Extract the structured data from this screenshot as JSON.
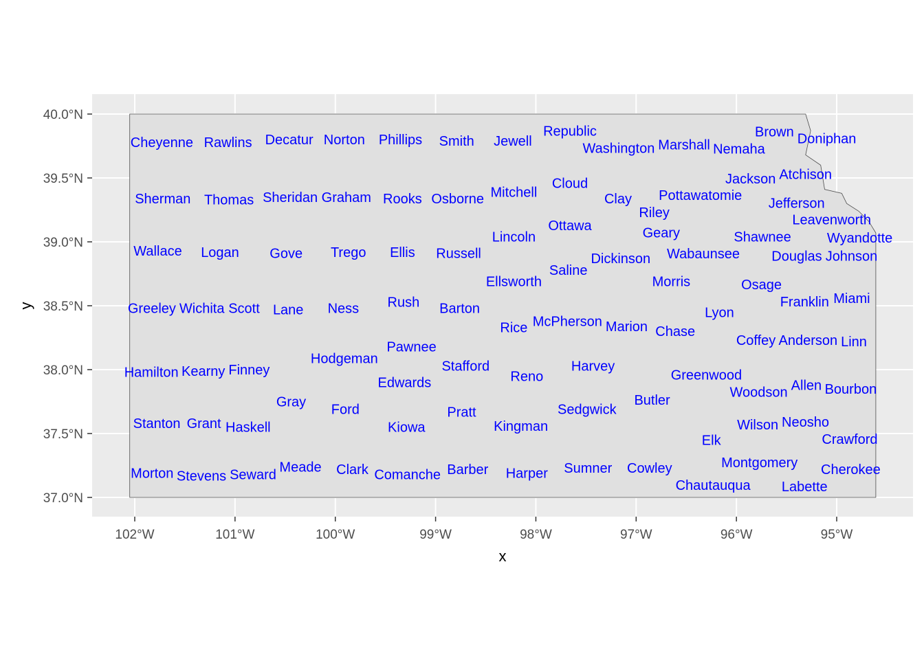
{
  "map": {
    "xlabel": "x",
    "ylabel": "y",
    "x_ticks": [
      {
        "lon": -102,
        "label": "102°W"
      },
      {
        "lon": -101,
        "label": "101°W"
      },
      {
        "lon": -100,
        "label": "100°W"
      },
      {
        "lon": -99,
        "label": "99°W"
      },
      {
        "lon": -98,
        "label": "98°W"
      },
      {
        "lon": -97,
        "label": "97°W"
      },
      {
        "lon": -96,
        "label": "96°W"
      },
      {
        "lon": -95,
        "label": "95°W"
      }
    ],
    "y_ticks": [
      {
        "lat": 40.0,
        "label": "40.0°N"
      },
      {
        "lat": 39.5,
        "label": "39.5°N"
      },
      {
        "lat": 39.0,
        "label": "39.0°N"
      },
      {
        "lat": 38.5,
        "label": "38.5°N"
      },
      {
        "lat": 38.0,
        "label": "38.0°N"
      },
      {
        "lat": 37.5,
        "label": "37.5°N"
      },
      {
        "lat": 37.0,
        "label": "37.0°N"
      }
    ],
    "xlim": [
      -102.42,
      -94.24
    ],
    "ylim": [
      36.85,
      40.15
    ],
    "colors": {
      "panel": "#ebebeb",
      "grid": "#ffffff",
      "county_fill": "#e0e0e0",
      "border": "#4d4d4d",
      "label": "#0000ff",
      "axis_text": "#4d4d4d"
    },
    "state_outline": [
      [
        -102.05,
        40.0
      ],
      [
        -95.31,
        40.0
      ],
      [
        -95.26,
        39.87
      ],
      [
        -95.31,
        39.68
      ],
      [
        -95.16,
        39.6
      ],
      [
        -95.12,
        39.41
      ],
      [
        -94.95,
        39.38
      ],
      [
        -94.9,
        39.3
      ],
      [
        -94.78,
        39.24
      ],
      [
        -94.68,
        39.16
      ],
      [
        -94.61,
        39.07
      ],
      [
        -94.61,
        37.0
      ],
      [
        -102.05,
        37.0
      ]
    ],
    "counties": [
      {
        "name": "Cheyenne",
        "lon": -101.73,
        "lat": 39.78
      },
      {
        "name": "Rawlins",
        "lon": -101.07,
        "lat": 39.78
      },
      {
        "name": "Decatur",
        "lon": -100.46,
        "lat": 39.8
      },
      {
        "name": "Norton",
        "lon": -99.91,
        "lat": 39.8
      },
      {
        "name": "Phillips",
        "lon": -99.35,
        "lat": 39.8
      },
      {
        "name": "Smith",
        "lon": -98.79,
        "lat": 39.79
      },
      {
        "name": "Jewell",
        "lon": -98.23,
        "lat": 39.79
      },
      {
        "name": "Republic",
        "lon": -97.66,
        "lat": 39.82
      },
      {
        "name": "Washington",
        "lon": -97.1,
        "lat": 39.78
      },
      {
        "name": "Marshall",
        "lon": -96.54,
        "lat": 39.76
      },
      {
        "name": "Nemaha",
        "lon": -96.03,
        "lat": 39.78
      },
      {
        "name": "Brown",
        "lon": -95.6,
        "lat": 39.81
      },
      {
        "name": "Doniphan",
        "lon": -95.12,
        "lat": 39.81
      },
      {
        "name": "Sherman",
        "lon": -101.72,
        "lat": 39.34
      },
      {
        "name": "Thomas",
        "lon": -101.06,
        "lat": 39.33
      },
      {
        "name": "Sheridan",
        "lon": -100.45,
        "lat": 39.35
      },
      {
        "name": "Graham",
        "lon": -99.89,
        "lat": 39.35
      },
      {
        "name": "Rooks",
        "lon": -99.33,
        "lat": 39.34
      },
      {
        "name": "Osborne",
        "lon": -98.78,
        "lat": 39.34
      },
      {
        "name": "Mitchell",
        "lon": -98.22,
        "lat": 39.39
      },
      {
        "name": "Cloud",
        "lon": -97.66,
        "lat": 39.46
      },
      {
        "name": "Clay",
        "lon": -97.18,
        "lat": 39.34
      },
      {
        "name": "Riley",
        "lon": -96.82,
        "lat": 39.3
      },
      {
        "name": "Pottawatomie",
        "lon": -96.36,
        "lat": 39.34
      },
      {
        "name": "Jackson",
        "lon": -95.82,
        "lat": 39.45
      },
      {
        "name": "Atchison",
        "lon": -95.35,
        "lat": 39.53
      },
      {
        "name": "Jefferson",
        "lon": -95.4,
        "lat": 39.22
      },
      {
        "name": "Leavenworth",
        "lon": -95.05,
        "lat": 39.18
      },
      {
        "name": "Wyandotte",
        "lon": -94.77,
        "lat": 39.09
      },
      {
        "name": "Wallace",
        "lon": -101.77,
        "lat": 38.93
      },
      {
        "name": "Logan",
        "lon": -101.15,
        "lat": 38.92
      },
      {
        "name": "Gove",
        "lon": -100.49,
        "lat": 38.91
      },
      {
        "name": "Trego",
        "lon": -99.87,
        "lat": 38.92
      },
      {
        "name": "Ellis",
        "lon": -99.33,
        "lat": 38.92
      },
      {
        "name": "Russell",
        "lon": -98.77,
        "lat": 38.91
      },
      {
        "name": "Lincoln",
        "lon": -98.22,
        "lat": 39.04
      },
      {
        "name": "Ottawa",
        "lon": -97.66,
        "lat": 39.13
      },
      {
        "name": "Geary",
        "lon": -96.75,
        "lat": 39.04
      },
      {
        "name": "Wabaunsee",
        "lon": -96.33,
        "lat": 38.97
      },
      {
        "name": "Shawnee",
        "lon": -95.74,
        "lat": 39.03
      },
      {
        "name": "Douglas",
        "lon": -95.38,
        "lat": 38.89
      },
      {
        "name": "Johnson",
        "lon": -94.87,
        "lat": 38.89
      },
      {
        "name": "Saline",
        "lon": -97.66,
        "lat": 38.78
      },
      {
        "name": "Dickinson",
        "lon": -97.17,
        "lat": 38.87
      },
      {
        "name": "Ellsworth",
        "lon": -98.22,
        "lat": 38.69
      },
      {
        "name": "Morris",
        "lon": -96.65,
        "lat": 38.69
      },
      {
        "name": "Osage",
        "lon": -95.75,
        "lat": 38.64
      },
      {
        "name": "Franklin",
        "lon": -95.32,
        "lat": 38.56
      },
      {
        "name": "Miami",
        "lon": -94.85,
        "lat": 38.56
      },
      {
        "name": "Greeley",
        "lon": -101.81,
        "lat": 38.48
      },
      {
        "name": "Wichita",
        "lon": -101.35,
        "lat": 38.48
      },
      {
        "name": "Scott",
        "lon": -100.91,
        "lat": 38.48
      },
      {
        "name": "Lane",
        "lon": -100.47,
        "lat": 38.47
      },
      {
        "name": "Ness",
        "lon": -99.92,
        "lat": 38.48
      },
      {
        "name": "Rush",
        "lon": -99.32,
        "lat": 38.53
      },
      {
        "name": "Barton",
        "lon": -98.76,
        "lat": 38.48
      },
      {
        "name": "Rice",
        "lon": -98.22,
        "lat": 38.33
      },
      {
        "name": "McPherson",
        "lon": -97.66,
        "lat": 38.38
      },
      {
        "name": "Marion",
        "lon": -97.12,
        "lat": 38.34
      },
      {
        "name": "Chase",
        "lon": -96.61,
        "lat": 38.3
      },
      {
        "name": "Lyon",
        "lon": -96.17,
        "lat": 38.45
      },
      {
        "name": "Coffey",
        "lon": -95.75,
        "lat": 38.23
      },
      {
        "name": "Anderson",
        "lon": -95.31,
        "lat": 38.23
      },
      {
        "name": "Linn",
        "lon": -94.86,
        "lat": 38.22
      },
      {
        "name": "Hamilton",
        "lon": -101.8,
        "lat": 37.98
      },
      {
        "name": "Kearny",
        "lon": -101.33,
        "lat": 37.99
      },
      {
        "name": "Finney",
        "lon": -100.88,
        "lat": 38.0
      },
      {
        "name": "Hodgeman",
        "lon": -99.91,
        "lat": 38.09
      },
      {
        "name": "Pawnee",
        "lon": -99.24,
        "lat": 38.18
      },
      {
        "name": "Stafford",
        "lon": -98.7,
        "lat": 38.03
      },
      {
        "name": "Edwards",
        "lon": -99.31,
        "lat": 37.9
      },
      {
        "name": "Reno",
        "lon": -98.09,
        "lat": 37.95
      },
      {
        "name": "Harvey",
        "lon": -97.43,
        "lat": 38.03
      },
      {
        "name": "Butler",
        "lon": -96.84,
        "lat": 37.77
      },
      {
        "name": "Greenwood",
        "lon": -96.3,
        "lat": 37.89
      },
      {
        "name": "Woodson",
        "lon": -95.76,
        "lat": 37.89
      },
      {
        "name": "Allen",
        "lon": -95.32,
        "lat": 37.88
      },
      {
        "name": "Bourbon",
        "lon": -94.86,
        "lat": 37.85
      },
      {
        "name": "Gray",
        "lon": -100.44,
        "lat": 37.75
      },
      {
        "name": "Ford",
        "lon": -99.9,
        "lat": 37.69
      },
      {
        "name": "Pratt",
        "lon": -98.74,
        "lat": 37.67
      },
      {
        "name": "Sedgwick",
        "lon": -97.49,
        "lat": 37.69
      },
      {
        "name": "Stanton",
        "lon": -101.78,
        "lat": 37.58
      },
      {
        "name": "Grant",
        "lon": -101.31,
        "lat": 37.58
      },
      {
        "name": "Haskell",
        "lon": -100.87,
        "lat": 37.55
      },
      {
        "name": "Kiowa",
        "lon": -99.29,
        "lat": 37.55
      },
      {
        "name": "Kingman",
        "lon": -98.15,
        "lat": 37.56
      },
      {
        "name": "Wilson",
        "lon": -95.78,
        "lat": 37.57
      },
      {
        "name": "Neosho",
        "lon": -95.32,
        "lat": 37.56
      },
      {
        "name": "Crawford",
        "lon": -94.87,
        "lat": 37.49
      },
      {
        "name": "Elk",
        "lon": -96.25,
        "lat": 37.45
      },
      {
        "name": "Morton",
        "lon": -101.79,
        "lat": 37.19
      },
      {
        "name": "Stevens",
        "lon": -101.31,
        "lat": 37.17
      },
      {
        "name": "Seward",
        "lon": -100.86,
        "lat": 37.18
      },
      {
        "name": "Meade",
        "lon": -100.37,
        "lat": 37.24
      },
      {
        "name": "Clark",
        "lon": -99.83,
        "lat": 37.22
      },
      {
        "name": "Comanche",
        "lon": -99.28,
        "lat": 37.18
      },
      {
        "name": "Barber",
        "lon": -98.68,
        "lat": 37.22
      },
      {
        "name": "Harper",
        "lon": -98.09,
        "lat": 37.19
      },
      {
        "name": "Sumner",
        "lon": -97.48,
        "lat": 37.23
      },
      {
        "name": "Cowley",
        "lon": -96.85,
        "lat": 37.23
      },
      {
        "name": "Chautauqua",
        "lon": -96.25,
        "lat": 37.15
      },
      {
        "name": "Montgomery",
        "lon": -95.77,
        "lat": 37.18
      },
      {
        "name": "Labette",
        "lon": -95.32,
        "lat": 37.18
      },
      {
        "name": "Cherokee",
        "lon": -94.86,
        "lat": 37.17
      }
    ]
  }
}
